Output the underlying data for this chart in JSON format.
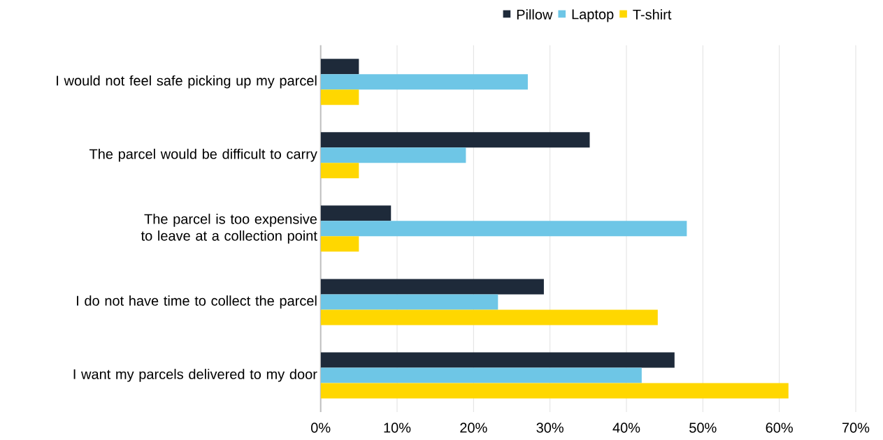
{
  "chart_data": {
    "type": "bar",
    "orientation": "horizontal",
    "categories": [
      "I would not feel safe picking up my parcel",
      "The parcel would be difficult to carry",
      "The parcel is too expensive to leave at a collection point",
      "I do not have time to collect the parcel",
      "I want my parcels delivered to my door"
    ],
    "series": [
      {
        "name": "Pillow",
        "color": "#1e2a3a",
        "values": [
          5,
          35.2,
          9.2,
          29.2,
          46.3
        ]
      },
      {
        "name": "Laptop",
        "color": "#6ec6e6",
        "values": [
          27.1,
          19,
          47.9,
          23.2,
          42
        ]
      },
      {
        "name": "T-shirt",
        "color": "#ffd700",
        "values": [
          5,
          5,
          5,
          44.1,
          61.2
        ]
      }
    ],
    "xlim": [
      0,
      70
    ],
    "xticks": [
      {
        "value": 0,
        "label": "0%"
      },
      {
        "value": 10,
        "label": "10%"
      },
      {
        "value": 20,
        "label": "20%"
      },
      {
        "value": 30,
        "label": "30%"
      },
      {
        "value": 40,
        "label": "40%"
      },
      {
        "value": 50,
        "label": "50%"
      },
      {
        "value": 60,
        "label": "60%"
      },
      {
        "value": 70,
        "label": "70%"
      }
    ],
    "grid": "x",
    "legend": "top"
  }
}
